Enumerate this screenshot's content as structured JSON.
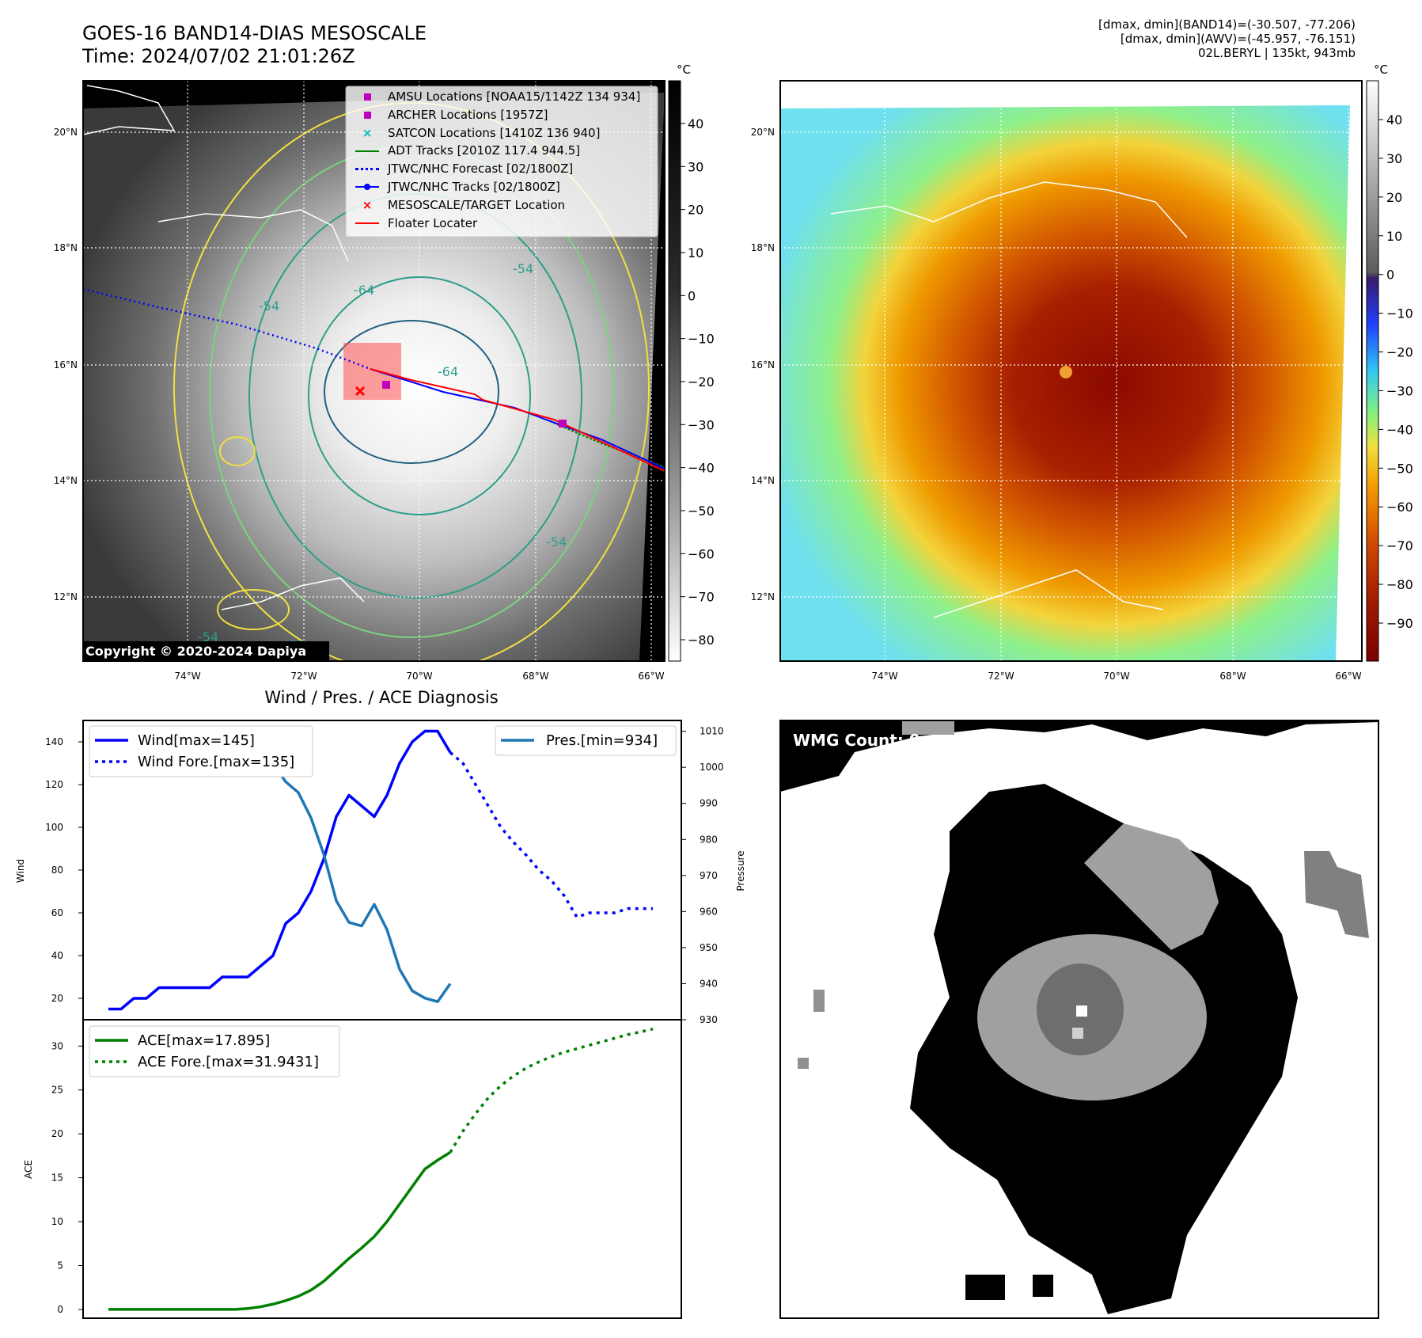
{
  "header": {
    "title_line1": "GOES-16 BAND14-DIAS MESOSCALE",
    "title_line2": "Time: 2024/07/02 21:01:26Z",
    "info_line1": "[dmax, dmin](BAND14)=(-30.507, -77.206)",
    "info_line2": "[dmax, dmin](AWV)=(-45.957, -76.151)",
    "info_line3": "02L.BERYL | 135kt, 943mb"
  },
  "map": {
    "lat_labels": [
      "20°N",
      "18°N",
      "16°N",
      "14°N",
      "12°N"
    ],
    "lon_labels": [
      "74°W",
      "72°W",
      "70°W",
      "68°W",
      "66°W"
    ],
    "copyright": "Copyright © 2020-2024 Dapiya",
    "contour_labels": [
      "-64",
      "-64",
      "-54",
      "-54",
      "-54",
      "-54",
      "-54"
    ],
    "legend": [
      {
        "label": "AMSU Locations [NOAA15/1142Z 134 934]",
        "marker": "square",
        "color": "#c000c0"
      },
      {
        "label": "ARCHER Locations [1957Z]",
        "marker": "square",
        "color": "#c000c0"
      },
      {
        "label": "SATCON Locations [1410Z 136 940]",
        "marker": "x",
        "color": "#00bfbf"
      },
      {
        "label": "ADT Tracks [2010Z 117.4 944.5]",
        "marker": "line",
        "color": "#008000"
      },
      {
        "label": "JTWC/NHC Forecast [02/1800Z]",
        "marker": "dotted",
        "color": "#0000ff"
      },
      {
        "label": "JTWC/NHC Tracks [02/1800Z]",
        "marker": "line-dot",
        "color": "#0000ff"
      },
      {
        "label": "MESOSCALE/TARGET Location",
        "marker": "x",
        "color": "#ff0000"
      },
      {
        "label": "Floater Locater",
        "marker": "line",
        "color": "#ff0000"
      }
    ],
    "gray_colorbar": {
      "unit": "°C",
      "ticks": [
        "40",
        "30",
        "20",
        "10",
        "0",
        "−10",
        "−20",
        "−30",
        "−40",
        "−50",
        "−60",
        "−70",
        "−80"
      ]
    },
    "color_colorbar": {
      "unit": "°C",
      "ticks": [
        "40",
        "30",
        "20",
        "10",
        "0",
        "−10",
        "−20",
        "−30",
        "−40",
        "−50",
        "−60",
        "−70",
        "−80",
        "−90"
      ]
    }
  },
  "wmg": {
    "label": "WMG Count: 0"
  },
  "colors": {
    "wind": "#0000ff",
    "pressure": "#1f77b4",
    "ace": "#008000",
    "target": "#ff0000",
    "amsu": "#c000c0"
  },
  "chart_data": [
    {
      "type": "line",
      "title": "Wind / Pres. / ACE Diagnosis",
      "ylabel": "Wind",
      "y2label": "Pressure",
      "ylim": [
        10,
        150
      ],
      "y2lim": [
        930,
        1013
      ],
      "yticks": [
        20,
        40,
        60,
        80,
        100,
        120,
        140
      ],
      "y2ticks": [
        930,
        940,
        950,
        960,
        970,
        980,
        990,
        1000,
        1010
      ],
      "series": [
        {
          "name": "Wind[max=145]",
          "axis": "left",
          "style": "solid",
          "x": [
            0,
            1,
            2,
            3,
            4,
            5,
            6,
            7,
            8,
            9,
            10,
            11,
            12,
            13,
            14,
            15,
            16,
            17,
            18,
            19,
            20,
            21,
            22,
            23,
            24,
            25,
            26,
            27
          ],
          "values": [
            15,
            15,
            20,
            20,
            25,
            25,
            25,
            25,
            25,
            30,
            30,
            30,
            35,
            40,
            55,
            60,
            70,
            85,
            105,
            115,
            110,
            105,
            115,
            130,
            140,
            145,
            145,
            135
          ]
        },
        {
          "name": "Wind Fore.[max=135]",
          "axis": "left",
          "style": "dotted",
          "x": [
            27,
            28,
            29,
            30,
            31,
            32,
            33,
            34,
            35,
            36,
            37,
            38,
            39,
            40,
            41,
            42,
            43
          ],
          "values": [
            135,
            130,
            120,
            110,
            100,
            93,
            87,
            80,
            75,
            68,
            58,
            60,
            60,
            60,
            62,
            62,
            62
          ]
        },
        {
          "name": "Pres.[min=934]",
          "axis": "right",
          "style": "solid",
          "x": [
            0,
            1,
            2,
            3,
            4,
            5,
            6,
            7,
            8,
            9,
            10,
            11,
            12,
            13,
            14,
            15,
            16,
            17,
            18,
            19,
            20,
            21,
            22,
            23,
            24,
            25,
            26,
            27
          ],
          "values": [
            1011,
            1011,
            1011,
            1010,
            1010,
            1009,
            1008,
            1008,
            1007,
            1007,
            1006,
            1006,
            1005,
            1001,
            996,
            993,
            986,
            976,
            963,
            957,
            956,
            962,
            955,
            944,
            938,
            936,
            935,
            940
          ]
        }
      ]
    },
    {
      "type": "line",
      "ylabel": "ACE",
      "ylim": [
        -1,
        33
      ],
      "yticks": [
        0,
        5,
        10,
        15,
        20,
        25,
        30
      ],
      "series": [
        {
          "name": "ACE[max=17.895]",
          "style": "solid",
          "x": [
            0,
            1,
            2,
            3,
            4,
            5,
            6,
            7,
            8,
            9,
            10,
            11,
            12,
            13,
            14,
            15,
            16,
            17,
            18,
            19,
            20,
            21,
            22,
            23,
            24,
            25,
            26,
            27
          ],
          "values": [
            0,
            0,
            0,
            0,
            0,
            0,
            0,
            0,
            0,
            0,
            0,
            0.1,
            0.3,
            0.6,
            1.0,
            1.5,
            2.2,
            3.2,
            4.5,
            5.8,
            7.0,
            8.3,
            10,
            12,
            14,
            16,
            17,
            17.895
          ]
        },
        {
          "name": "ACE Fore.[max=31.9431]",
          "style": "dotted",
          "x": [
            27,
            28,
            29,
            30,
            31,
            32,
            33,
            34,
            35,
            36,
            37,
            38,
            39,
            40,
            41,
            42,
            43
          ],
          "values": [
            17.895,
            20.3,
            22.3,
            24.1,
            25.5,
            26.6,
            27.5,
            28.2,
            28.8,
            29.3,
            29.7,
            30.1,
            30.5,
            30.9,
            31.3,
            31.6,
            31.9431
          ]
        }
      ]
    }
  ]
}
